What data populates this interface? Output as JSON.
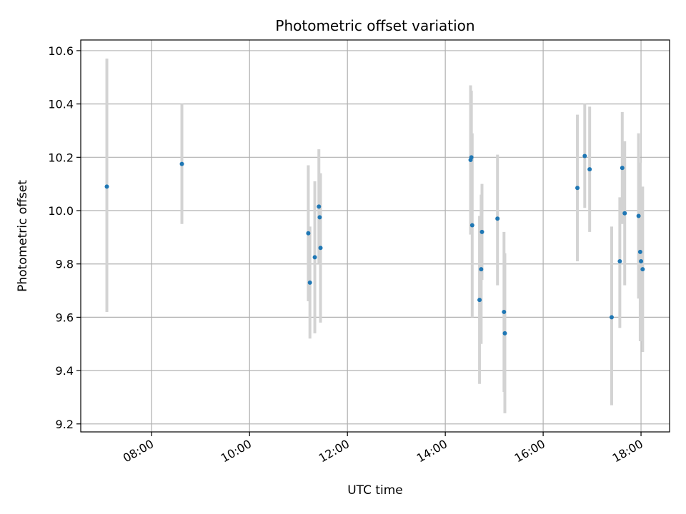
{
  "chart_data": {
    "type": "scatter",
    "title": "Photometric offset variation",
    "xlabel": "UTC time",
    "ylabel": "Photometric offset",
    "x_tick_labels": [
      "08:00",
      "10:00",
      "12:00",
      "14:00",
      "16:00",
      "18:00"
    ],
    "y_tick_labels": [
      "9.2",
      "9.4",
      "9.6",
      "9.8",
      "10.0",
      "10.2",
      "10.4",
      "10.6"
    ],
    "y_ticks": [
      9.2,
      9.4,
      9.6,
      9.8,
      10.0,
      10.2,
      10.4,
      10.6
    ],
    "xlim": [
      "06:33",
      "18:35"
    ],
    "ylim": [
      9.17,
      10.64
    ],
    "grid": true,
    "colors": {
      "point": "#1f77b4",
      "errorbar": "#d3d3d3",
      "grid": "#b0b0b0"
    },
    "series": [
      {
        "points": [
          {
            "x": "07:05",
            "y": 10.09,
            "lo": 9.62,
            "hi": 10.57
          },
          {
            "x": "08:37",
            "y": 10.175,
            "lo": 9.95,
            "hi": 10.4
          },
          {
            "x": "11:12",
            "y": 9.915,
            "lo": 9.66,
            "hi": 10.17
          },
          {
            "x": "11:14",
            "y": 9.73,
            "lo": 9.52,
            "hi": 9.94
          },
          {
            "x": "11:20",
            "y": 9.825,
            "lo": 9.54,
            "hi": 10.11
          },
          {
            "x": "11:25",
            "y": 10.015,
            "lo": 9.8,
            "hi": 10.23
          },
          {
            "x": "11:26",
            "y": 9.975,
            "lo": 9.84,
            "hi": 10.14
          },
          {
            "x": "11:27",
            "y": 9.86,
            "lo": 9.58,
            "hi": 10.14
          },
          {
            "x": "14:31",
            "y": 10.19,
            "lo": 9.91,
            "hi": 10.47
          },
          {
            "x": "14:32",
            "y": 10.2,
            "lo": 9.98,
            "hi": 10.45
          },
          {
            "x": "14:33",
            "y": 9.945,
            "lo": 9.6,
            "hi": 10.29
          },
          {
            "x": "14:42",
            "y": 9.665,
            "lo": 9.35,
            "hi": 9.98
          },
          {
            "x": "14:44",
            "y": 9.78,
            "lo": 9.5,
            "hi": 10.06
          },
          {
            "x": "14:45",
            "y": 9.92,
            "lo": 9.74,
            "hi": 10.1
          },
          {
            "x": "15:04",
            "y": 9.97,
            "lo": 9.72,
            "hi": 10.21
          },
          {
            "x": "15:12",
            "y": 9.62,
            "lo": 9.32,
            "hi": 9.92
          },
          {
            "x": "15:13",
            "y": 9.54,
            "lo": 9.24,
            "hi": 9.84
          },
          {
            "x": "16:42",
            "y": 10.085,
            "lo": 9.81,
            "hi": 10.36
          },
          {
            "x": "16:51",
            "y": 10.205,
            "lo": 10.01,
            "hi": 10.4
          },
          {
            "x": "16:57",
            "y": 10.155,
            "lo": 9.92,
            "hi": 10.39
          },
          {
            "x": "17:24",
            "y": 9.6,
            "lo": 9.27,
            "hi": 9.94
          },
          {
            "x": "17:34",
            "y": 9.81,
            "lo": 9.56,
            "hi": 10.05
          },
          {
            "x": "17:37",
            "y": 10.16,
            "lo": 9.95,
            "hi": 10.37
          },
          {
            "x": "17:40",
            "y": 9.99,
            "lo": 9.72,
            "hi": 10.26
          },
          {
            "x": "17:57",
            "y": 9.98,
            "lo": 9.67,
            "hi": 10.29
          },
          {
            "x": "17:59",
            "y": 9.845,
            "lo": 9.51,
            "hi": 10.18
          },
          {
            "x": "18:00",
            "y": 9.81,
            "lo": 9.61,
            "hi": 10.01
          },
          {
            "x": "18:02",
            "y": 9.78,
            "lo": 9.47,
            "hi": 10.09
          }
        ]
      }
    ]
  }
}
